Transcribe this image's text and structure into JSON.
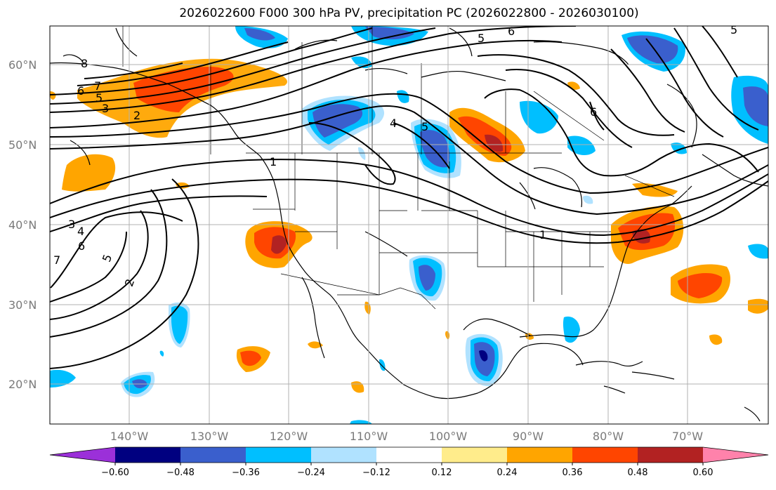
{
  "title": "2026022600 F000 300 hPa PV, precipitation PC (2026022800 - 2026030100)",
  "lat_labels": [
    "60°N",
    "50°N",
    "40°N",
    "30°N",
    "20°N"
  ],
  "lon_labels": [
    "140°W",
    "130°W",
    "120°W",
    "110°W",
    "100°W",
    "90°W",
    "80°W",
    "70°W"
  ],
  "colorbar": {
    "ticks": [
      "−0.60",
      "−0.48",
      "−0.36",
      "−0.24",
      "−0.12",
      "0.12",
      "0.24",
      "0.36",
      "0.48",
      "0.60"
    ],
    "colors": [
      "#9b30d9",
      "#000080",
      "#3a5fcd",
      "#00bfff",
      "#b0e2ff",
      "#ffffff",
      "#ffec8b",
      "#ffa500",
      "#ff4500",
      "#b22222",
      "#ff82ab"
    ]
  },
  "contour_labels": [
    "8",
    "7",
    "6",
    "5",
    "3",
    "2",
    "1",
    "4",
    "5",
    "3",
    "4",
    "6",
    "7",
    "5",
    "2",
    "1",
    "5",
    "6",
    "5",
    "6"
  ],
  "colors": {
    "line": "#000000",
    "grid": "#b0b0b0",
    "tick_text": "#7a7a7a"
  }
}
